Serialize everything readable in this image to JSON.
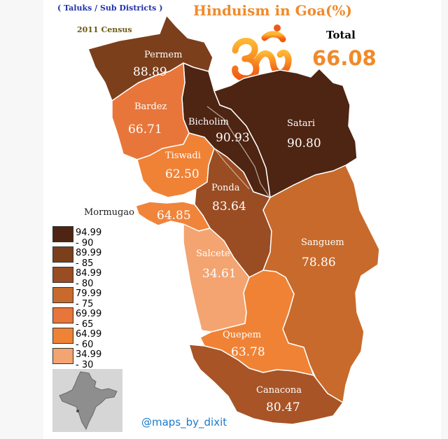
{
  "header": {
    "subtitle": "( Taluks / Sub Districts )",
    "census": "2011 Census",
    "title": "Hinduism in Goa(%)",
    "total_label": "Total",
    "total_value": "66.08"
  },
  "taluks": [
    {
      "name": "Permem",
      "value": "88.89",
      "color": "#7b3f1c"
    },
    {
      "name": "Bardez",
      "value": "66.71",
      "color": "#e8763a"
    },
    {
      "name": "Bicholim",
      "value": "90.93",
      "color": "#4e2412"
    },
    {
      "name": "Satari",
      "value": "90.80",
      "color": "#4e2412"
    },
    {
      "name": "Tiswadi",
      "value": "62.50",
      "color": "#f08236"
    },
    {
      "name": "Ponda",
      "value": "83.64",
      "color": "#9a4c22"
    },
    {
      "name": "Mormugao",
      "value": "64.85",
      "color": "#f0843a"
    },
    {
      "name": "Salcete",
      "value": "34.61",
      "color": "#f3a470"
    },
    {
      "name": "Sanguem",
      "value": "78.86",
      "color": "#c86a2b"
    },
    {
      "name": "Quepem",
      "value": "63.78",
      "color": "#f08236"
    },
    {
      "name": "Canacona",
      "value": "80.47",
      "color": "#a85426"
    }
  ],
  "legend": [
    {
      "label": "94.99 - 90",
      "color": "#4e2412"
    },
    {
      "label": "89.99 - 85",
      "color": "#7b3f1c"
    },
    {
      "label": "84.99 - 80",
      "color": "#9a4c22"
    },
    {
      "label": "79.99 - 75",
      "color": "#c86a2b"
    },
    {
      "label": "69.99 - 65",
      "color": "#e8763a"
    },
    {
      "label": "64.99 - 60",
      "color": "#f08236"
    },
    {
      "label": "34.99 - 30",
      "color": "#f3a470"
    }
  ],
  "credit": "@maps_by_dixit",
  "colors": {
    "accent": "#f08a2a",
    "credit": "#1a7acb"
  },
  "icons": {
    "symbol": "om-symbol-icon",
    "inset": "india-outline-map-icon"
  }
}
